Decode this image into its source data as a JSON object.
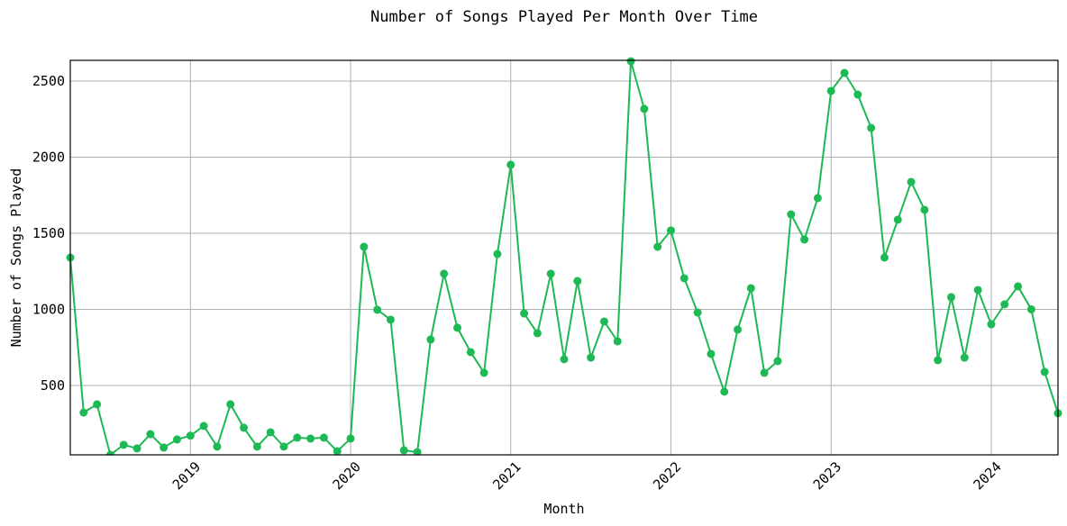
{
  "chart_data": {
    "type": "line",
    "title": "Number of Songs Played Per Month Over Time",
    "x_label": "Month",
    "y_label": "Number of Songs Played",
    "color": "#1db954",
    "grid": true,
    "x": [
      "2018-04",
      "2018-05",
      "2018-06",
      "2018-07",
      "2018-08",
      "2018-09",
      "2018-10",
      "2018-11",
      "2018-12",
      "2019-01",
      "2019-02",
      "2019-03",
      "2019-04",
      "2019-05",
      "2019-06",
      "2019-07",
      "2019-08",
      "2019-09",
      "2019-10",
      "2019-11",
      "2019-12",
      "2020-01",
      "2020-02",
      "2020-03",
      "2020-04",
      "2020-05",
      "2020-06",
      "2020-07",
      "2020-08",
      "2020-09",
      "2020-10",
      "2020-11",
      "2020-12",
      "2021-01",
      "2021-02",
      "2021-03",
      "2021-04",
      "2021-05",
      "2021-06",
      "2021-07",
      "2021-08",
      "2021-09",
      "2021-10",
      "2021-11",
      "2021-12",
      "2022-01",
      "2022-02",
      "2022-03",
      "2022-04",
      "2022-05",
      "2022-06",
      "2022-07",
      "2022-08",
      "2022-09",
      "2022-10",
      "2022-11",
      "2022-12",
      "2023-01",
      "2023-02",
      "2023-03",
      "2023-04",
      "2023-05",
      "2023-06",
      "2023-07",
      "2023-08",
      "2023-09",
      "2023-10",
      "2023-11",
      "2023-12",
      "2024-01",
      "2024-02",
      "2024-03",
      "2024-04",
      "2024-05",
      "2024-06"
    ],
    "values": [
      1340,
      322,
      376,
      44,
      110,
      86,
      180,
      92,
      145,
      170,
      234,
      98,
      376,
      222,
      98,
      192,
      98,
      157,
      151,
      157,
      68,
      151,
      1411,
      997,
      932,
      74,
      62,
      802,
      1234,
      879,
      719,
      583,
      1364,
      1950,
      973,
      843,
      1234,
      672,
      1186,
      683,
      920,
      790,
      2630,
      2317,
      1411,
      1518,
      1204,
      979,
      707,
      459,
      867,
      1139,
      583,
      660,
      1624,
      1459,
      1731,
      2435,
      2553,
      2411,
      2192,
      1340,
      1589,
      1837,
      1654,
      666,
      1080,
      683,
      1127,
      902,
      1033,
      1151,
      1000,
      589,
      317
    ],
    "xlim": [
      "2018-04",
      "2024-06"
    ],
    "xticks": [
      {
        "value": "2019-01",
        "label": "2019"
      },
      {
        "value": "2020-01",
        "label": "2020"
      },
      {
        "value": "2021-01",
        "label": "2021"
      },
      {
        "value": "2022-01",
        "label": "2022"
      },
      {
        "value": "2023-01",
        "label": "2023"
      },
      {
        "value": "2024-01",
        "label": "2024"
      }
    ],
    "ylim": [
      44,
      2636
    ],
    "yticks": [
      500,
      1000,
      1500,
      2000,
      2500
    ]
  }
}
